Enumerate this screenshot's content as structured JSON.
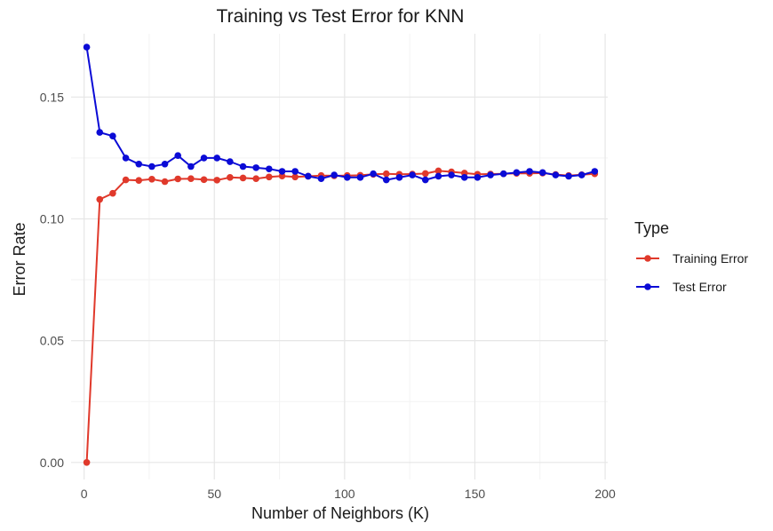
{
  "chart_data": {
    "type": "line",
    "title": "Training vs Test Error for KNN",
    "xlabel": "Number of Neighbors (K)",
    "ylabel": "Error Rate",
    "xlim": [
      -5,
      201
    ],
    "ylim": [
      -0.007,
      0.176
    ],
    "x_ticks": [
      0,
      50,
      100,
      150,
      200
    ],
    "x_tick_labels": [
      "0",
      "50",
      "100",
      "150",
      "200"
    ],
    "x_minor_ticks": [
      25,
      75,
      125,
      175
    ],
    "y_ticks": [
      0.0,
      0.05,
      0.1,
      0.15
    ],
    "y_tick_labels": [
      "0.00",
      "0.05",
      "0.10",
      "0.15"
    ],
    "y_minor_ticks": [
      0.025,
      0.075,
      0.125
    ],
    "grid": true,
    "legend": {
      "title": "Type",
      "position": "right"
    },
    "x": [
      1,
      6,
      11,
      16,
      21,
      26,
      31,
      36,
      41,
      46,
      51,
      56,
      61,
      66,
      71,
      76,
      81,
      86,
      91,
      96,
      101,
      106,
      111,
      116,
      121,
      126,
      131,
      136,
      141,
      146,
      151,
      156,
      161,
      166,
      171,
      176,
      181,
      186,
      191,
      196
    ],
    "series": [
      {
        "name": "Training Error",
        "color": "#e0392b",
        "values": [
          0.0,
          0.108,
          0.1105,
          0.116,
          0.1158,
          0.1163,
          0.1153,
          0.1164,
          0.1165,
          0.1161,
          0.1159,
          0.117,
          0.1168,
          0.1165,
          0.1172,
          0.1176,
          0.1172,
          0.1175,
          0.1178,
          0.1177,
          0.1178,
          0.1179,
          0.1183,
          0.1185,
          0.1183,
          0.1184,
          0.1186,
          0.1197,
          0.1193,
          0.1188,
          0.1183,
          0.1184,
          0.1185,
          0.1187,
          0.1187,
          0.1188,
          0.1182,
          0.1178,
          0.1181,
          0.1185
        ]
      },
      {
        "name": "Test Error",
        "color": "#0b0bd6",
        "values": [
          0.1705,
          0.1355,
          0.134,
          0.125,
          0.1225,
          0.1215,
          0.1225,
          0.126,
          0.1215,
          0.125,
          0.125,
          0.1235,
          0.1215,
          0.121,
          0.1205,
          0.1195,
          0.1195,
          0.1175,
          0.1165,
          0.118,
          0.117,
          0.117,
          0.1185,
          0.116,
          0.117,
          0.118,
          0.116,
          0.1175,
          0.118,
          0.117,
          0.117,
          0.118,
          0.1185,
          0.119,
          0.1195,
          0.119,
          0.118,
          0.1175,
          0.118,
          0.1195
        ]
      }
    ]
  }
}
